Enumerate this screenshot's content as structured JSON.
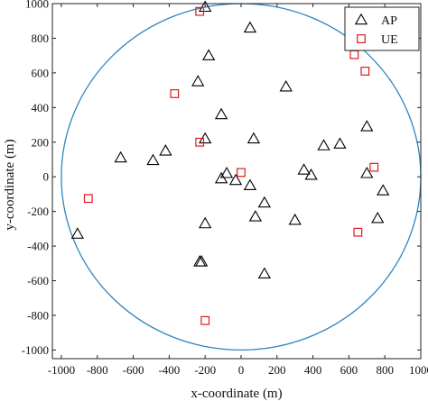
{
  "chart_data": {
    "type": "scatter",
    "xlabel": "x-coordinate (m)",
    "ylabel": "y-coordinate (m)",
    "xlim": [
      -1050,
      1000
    ],
    "ylim": [
      -1050,
      1000
    ],
    "xticks": [
      -1000,
      -800,
      -600,
      -400,
      -200,
      0,
      200,
      400,
      600,
      800,
      1000
    ],
    "xtick_labels": [
      "-1000",
      "-800",
      "-600",
      "-400",
      "-200",
      "0",
      "200",
      "400",
      "600",
      "800",
      "1000"
    ],
    "yticks": [
      -1000,
      -800,
      -600,
      -400,
      -200,
      0,
      200,
      400,
      600,
      800,
      1000
    ],
    "ytick_labels": [
      "-1000",
      "-800",
      "-600",
      "-400",
      "-200",
      "0",
      "200",
      "400",
      "600",
      "800",
      "1000"
    ],
    "grid": false,
    "legend_position": "top-right",
    "circle": {
      "center": [
        0,
        0
      ],
      "radius": 1000,
      "color": "#2e86c1"
    },
    "series": [
      {
        "name": "AP",
        "marker": "triangle",
        "color": "#000000",
        "points": [
          [
            -200,
            980
          ],
          [
            50,
            860
          ],
          [
            -180,
            700
          ],
          [
            -240,
            550
          ],
          [
            250,
            520
          ],
          [
            -110,
            360
          ],
          [
            -200,
            220
          ],
          [
            70,
            220
          ],
          [
            -420,
            150
          ],
          [
            -670,
            110
          ],
          [
            -490,
            95
          ],
          [
            460,
            180
          ],
          [
            550,
            190
          ],
          [
            700,
            290
          ],
          [
            350,
            40
          ],
          [
            390,
            10
          ],
          [
            700,
            20
          ],
          [
            790,
            -80
          ],
          [
            -80,
            20
          ],
          [
            -110,
            -10
          ],
          [
            -30,
            -20
          ],
          [
            50,
            -50
          ],
          [
            130,
            -150
          ],
          [
            80,
            -230
          ],
          [
            -200,
            -270
          ],
          [
            300,
            -250
          ],
          [
            760,
            -240
          ],
          [
            -910,
            -330
          ],
          [
            -220,
            -490
          ],
          [
            -230,
            -490
          ],
          [
            130,
            -560
          ]
        ]
      },
      {
        "name": "UE",
        "marker": "square",
        "color": "#e0191c",
        "points": [
          [
            -230,
            955
          ],
          [
            630,
            705
          ],
          [
            690,
            610
          ],
          [
            -370,
            480
          ],
          [
            -230,
            200
          ],
          [
            0,
            25
          ],
          [
            740,
            55
          ],
          [
            -850,
            -125
          ],
          [
            650,
            -320
          ],
          [
            -200,
            -830
          ]
        ]
      }
    ]
  }
}
